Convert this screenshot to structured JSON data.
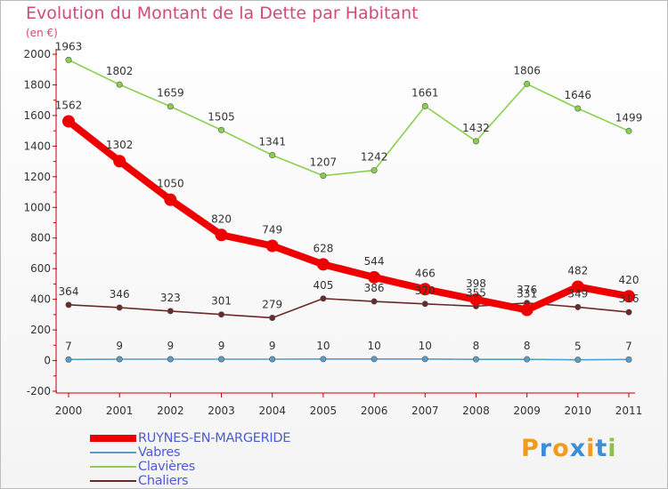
{
  "title": "Evolution du Montant de la Dette par Habitant",
  "subtitle": "(en €)",
  "logo": {
    "text": "Proxiti",
    "colors": [
      "#f29a1f",
      "#3a8fd8",
      "#f29a1f",
      "#3a8fd8",
      "#f29a1f",
      "#3a8fd8",
      "#8bc34a"
    ]
  },
  "chart_data": {
    "type": "line",
    "x": [
      "2000",
      "2001",
      "2002",
      "2003",
      "2004",
      "2005",
      "2006",
      "2007",
      "2008",
      "2009",
      "2010",
      "2011"
    ],
    "ylim": [
      -200,
      2000
    ],
    "yticks": [
      "2000",
      "1800",
      "1600",
      "1400",
      "1200",
      "1000",
      "800",
      "600",
      "400",
      "200",
      "0",
      "-200"
    ],
    "grid": false,
    "legend_position": "bottom-left",
    "series": [
      {
        "name": "RUYNES-EN-MARGERIDE",
        "color": "#ee0000",
        "values": [
          1562,
          1302,
          1050,
          820,
          749,
          628,
          544,
          466,
          398,
          331,
          482,
          420
        ]
      },
      {
        "name": "Vabres",
        "color": "#5a9cc8",
        "values": [
          7,
          9,
          9,
          9,
          9,
          10,
          10,
          10,
          8,
          8,
          5,
          7
        ]
      },
      {
        "name": "Clavières",
        "color": "#8ad04e",
        "values": [
          1963,
          1802,
          1659,
          1505,
          1341,
          1207,
          1242,
          1661,
          1432,
          1806,
          1646,
          1499
        ]
      },
      {
        "name": "Chaliers",
        "color": "#6b2a2a",
        "values": [
          364,
          346,
          323,
          301,
          279,
          405,
          386,
          370,
          355,
          376,
          349,
          316
        ]
      }
    ]
  }
}
